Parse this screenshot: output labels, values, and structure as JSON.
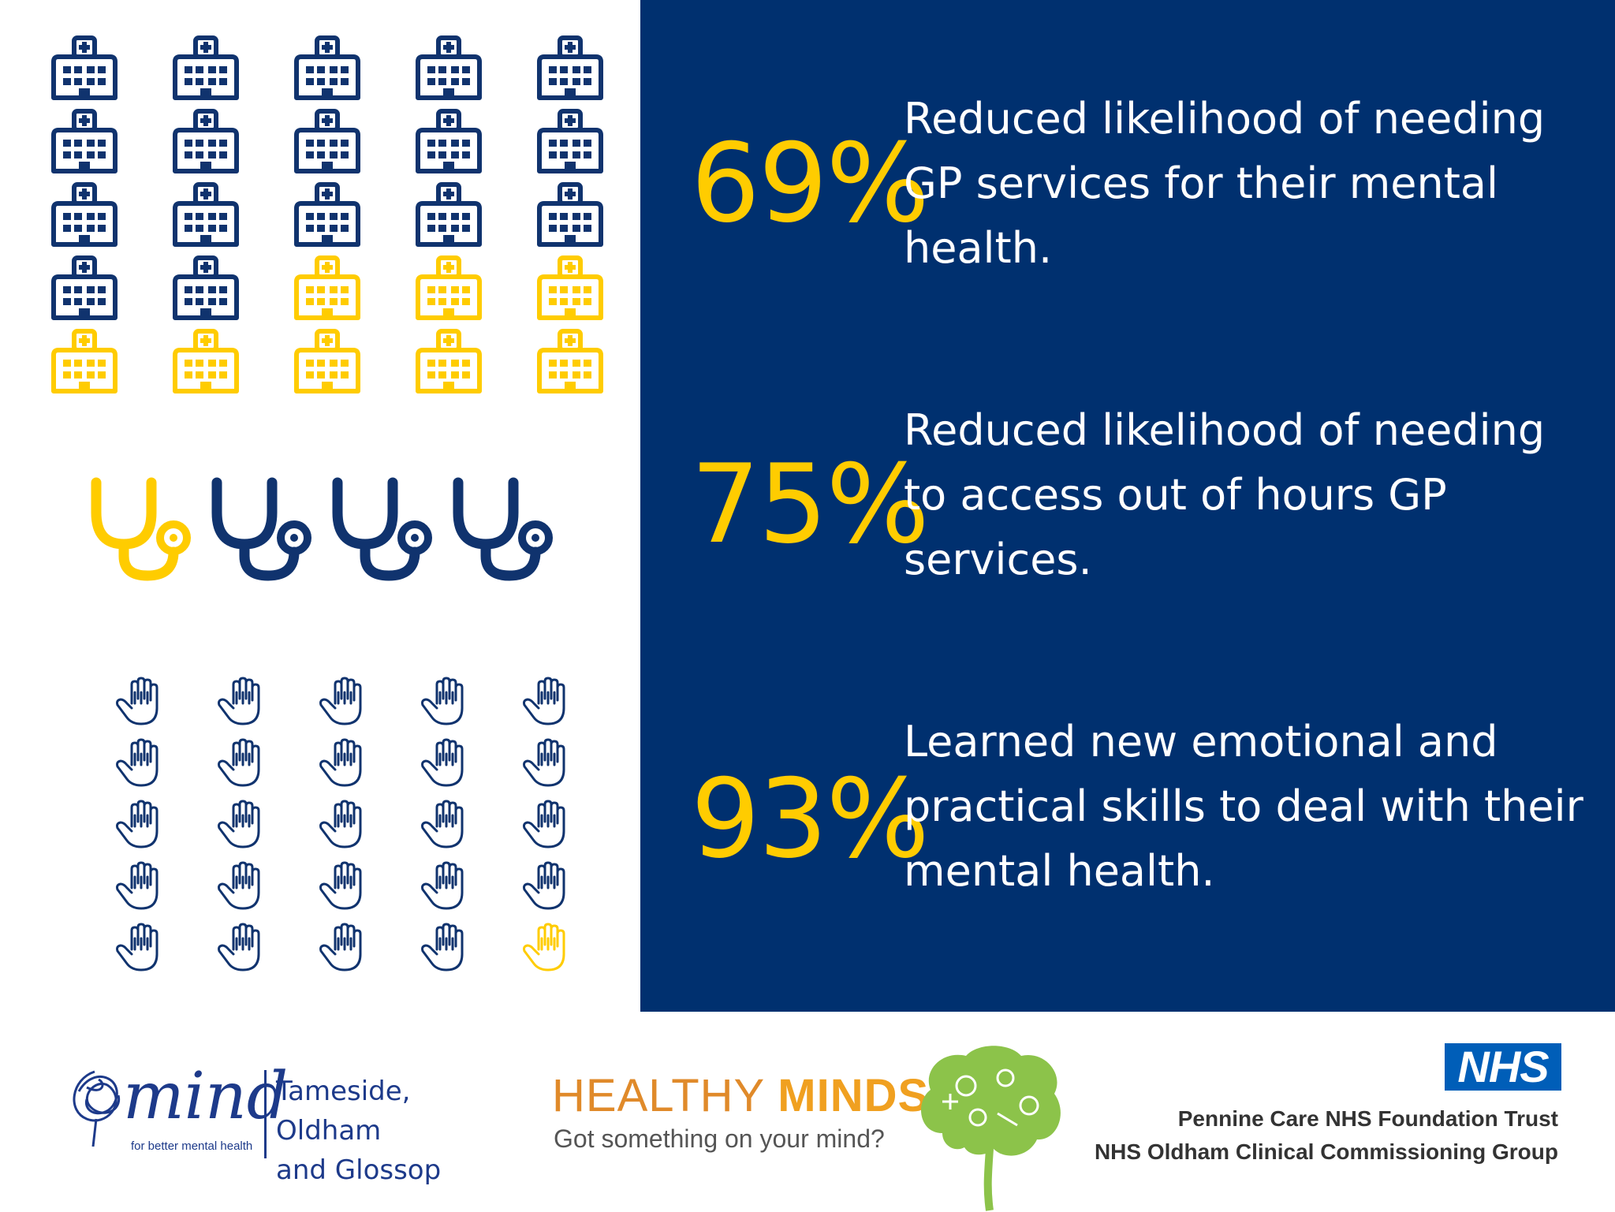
{
  "colors": {
    "navy": "#00306f",
    "yellow": "#ffcc00",
    "icon_blue": "#10336e",
    "white": "#ffffff"
  },
  "pictograms": {
    "hospitals": {
      "icon": "hospital-icon",
      "total": 25,
      "highlighted": 8
    },
    "stethoscopes": {
      "icon": "stethoscope-icon",
      "total": 4,
      "highlighted": 1
    },
    "hands": {
      "icon": "hand-icon",
      "total": 25,
      "highlighted": 1
    }
  },
  "stats": [
    {
      "percent": "69%",
      "text": "Reduced likelihood of needing GP services for their mental health."
    },
    {
      "percent": "75%",
      "text": "Reduced likelihood of needing to access out of hours GP services."
    },
    {
      "percent": "93%",
      "text": "Learned new emotional and practical skills to deal with their mental health."
    }
  ],
  "footer": {
    "mind": {
      "word": "mind",
      "tagline": "for better mental health",
      "local_line1": "Tameside, Oldham",
      "local_line2": "and Glossop"
    },
    "healthy_minds": {
      "title_part1": "HEALTHY ",
      "title_part2": "MINDS",
      "tagline": "Got something on your mind?"
    },
    "nhs": {
      "badge": "NHS",
      "org1": "Pennine Care NHS Foundation Trust",
      "org2": "NHS Oldham Clinical Commissioning Group"
    }
  }
}
